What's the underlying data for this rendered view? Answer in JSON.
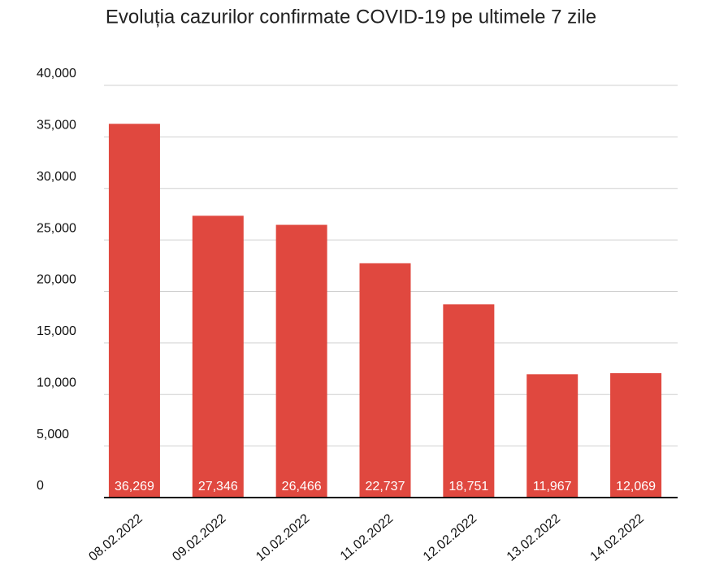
{
  "chart_data": {
    "type": "bar",
    "title": "Evoluția cazurilor confirmate COVID-19 pe ultimele 7 zile",
    "categories": [
      "08.02.2022",
      "09.02.2022",
      "10.02.2022",
      "11.02.2022",
      "12.02.2022",
      "13.02.2022",
      "14.02.2022"
    ],
    "values": [
      36269,
      27346,
      26466,
      22737,
      18751,
      11967,
      12069
    ],
    "value_labels": [
      "36,269",
      "27,346",
      "26,466",
      "22,737",
      "18,751",
      "11,967",
      "12,069"
    ],
    "color": "#e0483f",
    "ylim": [
      0,
      40000
    ],
    "yticks": [
      0,
      {
        "value": 5000,
        "label": "5,000"
      },
      {
        "value": 10000,
        "label": "10,000"
      },
      {
        "value": 15000,
        "label": "15,000"
      },
      {
        "value": 20000,
        "label": "20,000"
      },
      {
        "value": 25000,
        "label": "25,000"
      },
      {
        "value": 30000,
        "label": "30,000"
      },
      {
        "value": 35000,
        "label": "35,000"
      },
      {
        "value": 40000,
        "label": "40,000"
      }
    ],
    "grid": true
  }
}
